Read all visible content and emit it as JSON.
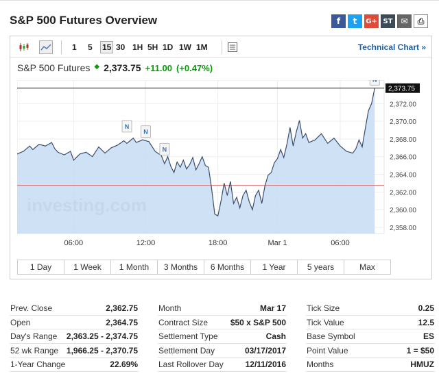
{
  "title": "S&P 500 Futures Overview",
  "share_icons": [
    {
      "name": "facebook-icon",
      "glyph": "f",
      "cls": "fb"
    },
    {
      "name": "twitter-icon",
      "glyph": "t",
      "cls": "tw"
    },
    {
      "name": "google-plus-icon",
      "glyph": "G+",
      "cls": "gp"
    },
    {
      "name": "stocktwits-icon",
      "glyph": "ST",
      "cls": "st"
    },
    {
      "name": "email-icon",
      "glyph": "✉",
      "cls": "em"
    },
    {
      "name": "print-icon",
      "glyph": "⎙",
      "cls": "pr"
    }
  ],
  "toolbar": {
    "intervals": [
      "1",
      "5",
      "15",
      "30",
      "1H",
      "5H",
      "1D",
      "1W",
      "1M"
    ],
    "active_interval": "15",
    "technical_link": "Technical Chart »"
  },
  "quote": {
    "name": "S&P 500 Futures",
    "arrow": "◆",
    "price": "2,373.75",
    "change": "+11.00",
    "change_pct": "(+0.47%)"
  },
  "chart_data": {
    "type": "area",
    "y_ticks": [
      "2,372.00",
      "2,370.00",
      "2,368.00",
      "2,366.00",
      "2,364.00",
      "2,362.00",
      "2,360.00",
      "2,358.00"
    ],
    "x_ticks": [
      "06:00",
      "12:00",
      "18:00",
      "Mar 1",
      "06:00"
    ],
    "ylim": [
      2357.3,
      2374.5
    ],
    "last_price": 2373.75,
    "last_price_label": "2,373.75",
    "prev_close": 2362.75,
    "watermark": "investing.com",
    "news_marker_label": "N",
    "series": [
      {
        "x": 0,
        "y": 2366.3
      },
      {
        "x": 2,
        "y": 2366.6
      },
      {
        "x": 4,
        "y": 2367.2
      },
      {
        "x": 5,
        "y": 2366.8
      },
      {
        "x": 7,
        "y": 2367.4
      },
      {
        "x": 9,
        "y": 2367.2
      },
      {
        "x": 11,
        "y": 2367.6
      },
      {
        "x": 12,
        "y": 2366.9
      },
      {
        "x": 13,
        "y": 2366.5
      },
      {
        "x": 15,
        "y": 2366.2
      },
      {
        "x": 17,
        "y": 2366.6
      },
      {
        "x": 18,
        "y": 2365.6
      },
      {
        "x": 20,
        "y": 2366.3
      },
      {
        "x": 22,
        "y": 2366.5
      },
      {
        "x": 24,
        "y": 2366.0
      },
      {
        "x": 26,
        "y": 2367.1
      },
      {
        "x": 28,
        "y": 2366.4
      },
      {
        "x": 30,
        "y": 2367.0
      },
      {
        "x": 32,
        "y": 2367.3
      },
      {
        "x": 34,
        "y": 2367.8
      },
      {
        "x": 35,
        "y": 2367.5
      },
      {
        "x": 37,
        "y": 2368.1
      },
      {
        "x": 38,
        "y": 2367.6
      },
      {
        "x": 40,
        "y": 2367.9
      },
      {
        "x": 42,
        "y": 2367.7
      },
      {
        "x": 44,
        "y": 2366.6
      },
      {
        "x": 46,
        "y": 2366.1
      },
      {
        "x": 47,
        "y": 2365.2
      },
      {
        "x": 48,
        "y": 2366.0
      },
      {
        "x": 49,
        "y": 2364.9
      },
      {
        "x": 50,
        "y": 2364.2
      },
      {
        "x": 51,
        "y": 2365.4
      },
      {
        "x": 52,
        "y": 2364.8
      },
      {
        "x": 53,
        "y": 2365.6
      },
      {
        "x": 54,
        "y": 2364.6
      },
      {
        "x": 55,
        "y": 2365.1
      },
      {
        "x": 56,
        "y": 2365.9
      },
      {
        "x": 57,
        "y": 2364.5
      },
      {
        "x": 58,
        "y": 2365.2
      },
      {
        "x": 59,
        "y": 2366.0
      },
      {
        "x": 60,
        "y": 2365.0
      },
      {
        "x": 61,
        "y": 2364.8
      },
      {
        "x": 62,
        "y": 2362.4
      },
      {
        "x": 63,
        "y": 2359.5
      },
      {
        "x": 64,
        "y": 2359.3
      },
      {
        "x": 65,
        "y": 2361.0
      },
      {
        "x": 66,
        "y": 2363.0
      },
      {
        "x": 67,
        "y": 2361.6
      },
      {
        "x": 68,
        "y": 2363.2
      },
      {
        "x": 69,
        "y": 2360.7
      },
      {
        "x": 70,
        "y": 2361.4
      },
      {
        "x": 71,
        "y": 2360.2
      },
      {
        "x": 72,
        "y": 2361.6
      },
      {
        "x": 73,
        "y": 2362.2
      },
      {
        "x": 74,
        "y": 2360.9
      },
      {
        "x": 75,
        "y": 2360.0
      },
      {
        "x": 76,
        "y": 2361.6
      },
      {
        "x": 77,
        "y": 2362.2
      },
      {
        "x": 78,
        "y": 2360.7
      },
      {
        "x": 79,
        "y": 2362.7
      },
      {
        "x": 80,
        "y": 2363.9
      },
      {
        "x": 81,
        "y": 2364.2
      },
      {
        "x": 82,
        "y": 2365.3
      },
      {
        "x": 83,
        "y": 2365.8
      },
      {
        "x": 84,
        "y": 2366.8
      },
      {
        "x": 85,
        "y": 2365.9
      },
      {
        "x": 86,
        "y": 2367.4
      },
      {
        "x": 87,
        "y": 2369.3
      },
      {
        "x": 88,
        "y": 2367.2
      },
      {
        "x": 89,
        "y": 2368.8
      },
      {
        "x": 90,
        "y": 2370.1
      },
      {
        "x": 91,
        "y": 2368.1
      },
      {
        "x": 92,
        "y": 2368.6
      },
      {
        "x": 93,
        "y": 2367.6
      },
      {
        "x": 95,
        "y": 2367.9
      },
      {
        "x": 97,
        "y": 2368.6
      },
      {
        "x": 99,
        "y": 2367.5
      },
      {
        "x": 101,
        "y": 2368.1
      },
      {
        "x": 103,
        "y": 2367.2
      },
      {
        "x": 105,
        "y": 2366.6
      },
      {
        "x": 107,
        "y": 2366.4
      },
      {
        "x": 108,
        "y": 2366.9
      },
      {
        "x": 109,
        "y": 2367.9
      },
      {
        "x": 110,
        "y": 2367.1
      },
      {
        "x": 111,
        "y": 2369.2
      },
      {
        "x": 112,
        "y": 2371.2
      },
      {
        "x": 113,
        "y": 2372.0
      },
      {
        "x": 114,
        "y": 2373.75
      }
    ],
    "x_tick_positions": [
      18,
      41,
      64,
      83,
      103
    ],
    "news_markers": [
      {
        "x": 35,
        "y": 2369.4
      },
      {
        "x": 41,
        "y": 2368.8
      },
      {
        "x": 47,
        "y": 2366.8
      },
      {
        "x": 114,
        "y": 2374.7
      }
    ]
  },
  "ranges": [
    "1 Day",
    "1 Week",
    "1 Month",
    "3 Months",
    "6 Months",
    "1 Year",
    "5 years",
    "Max"
  ],
  "stats": [
    [
      {
        "label": "Prev. Close",
        "value": "2,362.75"
      },
      {
        "label": "Open",
        "value": "2,364.75"
      },
      {
        "label": "Day's Range",
        "value": "2,363.25 - 2,374.75"
      },
      {
        "label": "52 wk Range",
        "value": "1,966.25 - 2,370.75"
      },
      {
        "label": "1-Year Change",
        "value": "22.69%"
      }
    ],
    [
      {
        "label": "Month",
        "value": "Mar 17"
      },
      {
        "label": "Contract Size",
        "value": "$50 x S&P 500"
      },
      {
        "label": "Settlement Type",
        "value": "Cash"
      },
      {
        "label": "Settlement Day",
        "value": "03/17/2017"
      },
      {
        "label": "Last Rollover Day",
        "value": "12/11/2016"
      }
    ],
    [
      {
        "label": "Tick Size",
        "value": "0.25"
      },
      {
        "label": "Tick Value",
        "value": "12.5"
      },
      {
        "label": "Base Symbol",
        "value": "ES"
      },
      {
        "label": "Point Value",
        "value": "1 = $50"
      },
      {
        "label": "Months",
        "value": "HMUZ"
      }
    ]
  ]
}
